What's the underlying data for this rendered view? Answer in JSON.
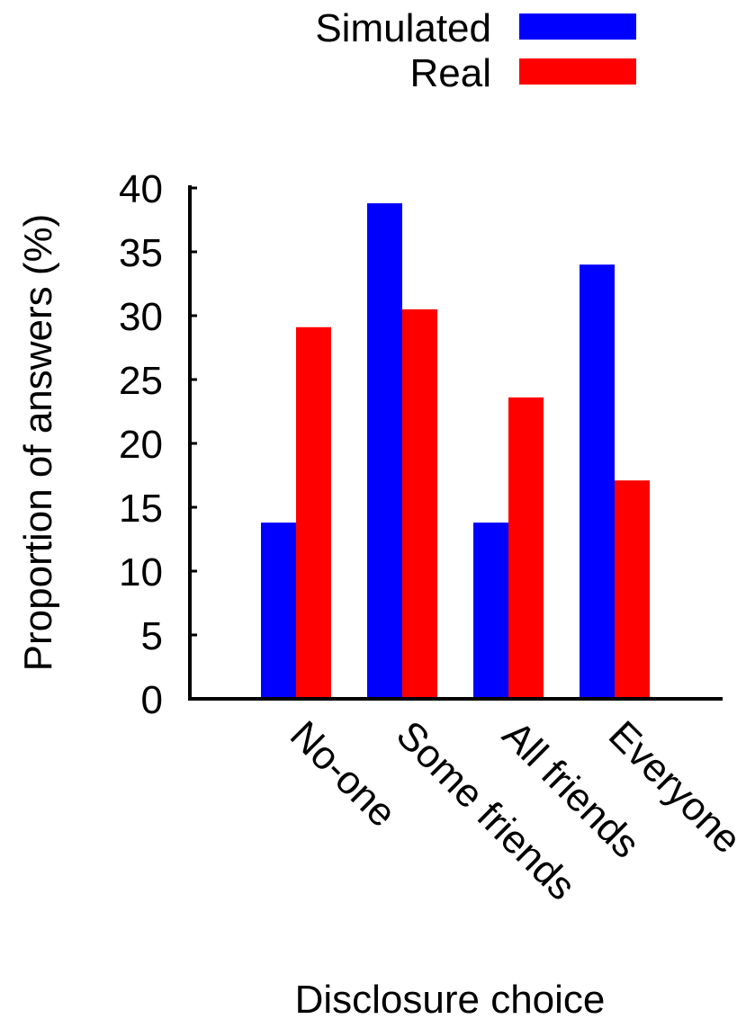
{
  "chart_data": {
    "type": "bar",
    "title": "",
    "xlabel": "Disclosure choice",
    "ylabel": "Proportion of answers (%)",
    "categories": [
      "No-one",
      "Some friends",
      "All friends",
      "Everyone"
    ],
    "ylim": [
      0,
      40
    ],
    "yticks": [
      "0",
      "5",
      "10",
      "15",
      "20",
      "25",
      "30",
      "35",
      "40"
    ],
    "grid": false,
    "legend_position": "top-right",
    "series": [
      {
        "name": "Simulated",
        "color": "#0000ff",
        "values": [
          13.8,
          38.8,
          13.8,
          34.0
        ]
      },
      {
        "name": "Real",
        "color": "#ff0000",
        "values": [
          29.1,
          30.5,
          23.6,
          17.1
        ]
      }
    ]
  }
}
